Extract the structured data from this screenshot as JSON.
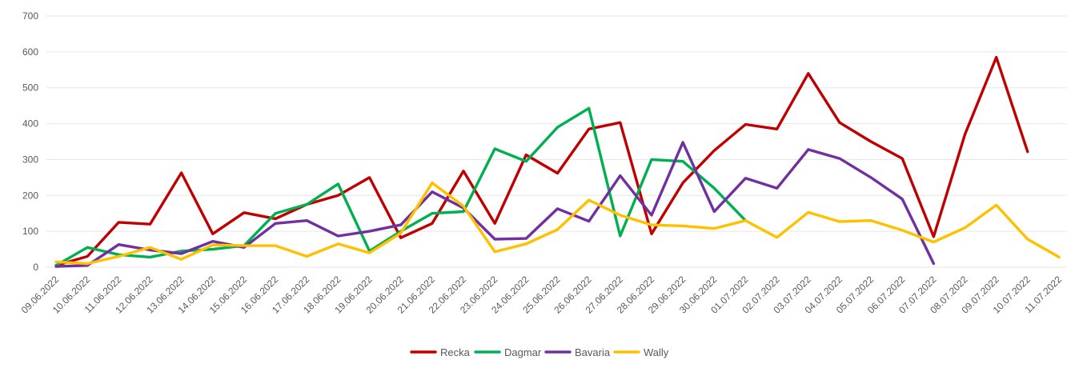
{
  "chart_data": {
    "type": "line",
    "categories": [
      "09.06.2022",
      "10.06.2022",
      "11.06.2022",
      "12.06.2022",
      "13.06.2022",
      "14.06.2022",
      "15.06.2022",
      "16.06.2022",
      "17.06.2022",
      "18.06.2022",
      "19.06.2022",
      "20.06.2022",
      "21.06.2022",
      "22.06.2022",
      "23.06.2022",
      "24.06.2022",
      "25.06.2022",
      "26.06.2022",
      "27.06.2022",
      "28.06.2022",
      "29.06.2022",
      "30.06.2022",
      "01.07.2022",
      "02.07.2022",
      "03.07.2022",
      "04.07.2022",
      "05.07.2022",
      "06.07.2022",
      "07.07.2022",
      "08.07.2022",
      "09.07.2022",
      "10.07.2022",
      "11.07.2022"
    ],
    "series": [
      {
        "name": "Recka",
        "color": "#c00000",
        "values": [
          5,
          30,
          125,
          120,
          263,
          93,
          152,
          135,
          175,
          200,
          250,
          82,
          122,
          268,
          122,
          313,
          262,
          385,
          403,
          93,
          235,
          325,
          398,
          385,
          540,
          403,
          350,
          303,
          85,
          370,
          585,
          322,
          null
        ]
      },
      {
        "name": "Dagmar",
        "color": "#00b050",
        "values": [
          5,
          55,
          35,
          28,
          45,
          50,
          60,
          150,
          175,
          232,
          45,
          100,
          150,
          155,
          330,
          295,
          390,
          443,
          87,
          300,
          295,
          220,
          130,
          null,
          null,
          null,
          null,
          null,
          null,
          null,
          null,
          null,
          null
        ]
      },
      {
        "name": "Bavaria",
        "color": "#7030a0",
        "values": [
          2,
          5,
          63,
          48,
          38,
          72,
          55,
          122,
          130,
          87,
          100,
          118,
          210,
          165,
          78,
          80,
          163,
          128,
          255,
          145,
          348,
          155,
          248,
          220,
          328,
          303,
          250,
          190,
          10,
          null,
          null,
          null,
          null
        ]
      },
      {
        "name": "Wally",
        "color": "#ffc000",
        "values": [
          15,
          10,
          30,
          55,
          22,
          62,
          60,
          60,
          30,
          65,
          40,
          95,
          235,
          170,
          43,
          65,
          105,
          187,
          145,
          118,
          115,
          108,
          130,
          83,
          153,
          127,
          130,
          103,
          70,
          110,
          173,
          78,
          28
        ]
      }
    ],
    "y_ticks": [
      "0",
      "100",
      "200",
      "300",
      "400",
      "500",
      "600",
      "700"
    ],
    "ylim": [
      0,
      700
    ],
    "grid": true,
    "legend_position": "bottom-center"
  }
}
